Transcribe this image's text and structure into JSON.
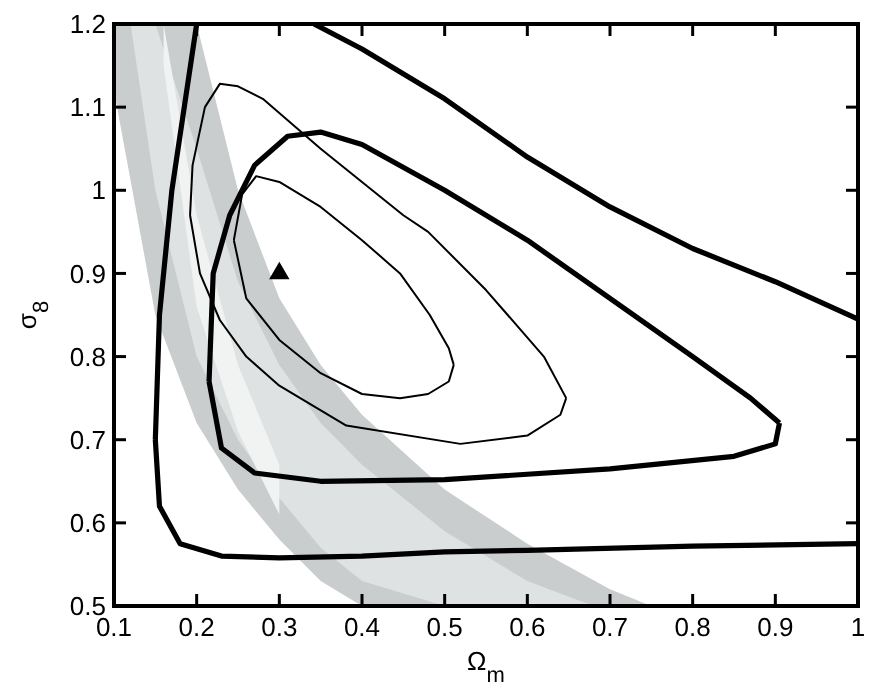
{
  "chart_data": {
    "type": "line",
    "xlabel": "Ω$_{m}$",
    "ylabel": "σ$_{8}$",
    "xlim": [
      0.1,
      1
    ],
    "ylim": [
      0.5,
      1.2
    ],
    "xticks": [
      0.1,
      0.2,
      0.3,
      0.4,
      0.5,
      0.6,
      0.7,
      0.8,
      0.9,
      1
    ],
    "yticks": [
      0.5,
      0.6,
      0.7,
      0.8,
      0.9,
      1,
      1.1,
      1.2
    ],
    "grid": false,
    "series": [
      {
        "type": "area",
        "color": "#c9cdcd",
        "x": [
          0.1,
          0.15,
          0.2,
          0.25,
          0.3,
          0.35,
          0.4,
          0.5,
          0.6,
          0.7,
          0.75
        ],
        "values": [
          null,
          null,
          null,
          null,
          null,
          null,
          null,
          null,
          null,
          null,
          null
        ],
        "upper": [
          1.2,
          1.2,
          1.2,
          1.0,
          0.87,
          0.79,
          0.73,
          0.64,
          0.575,
          0.52,
          0.5
        ],
        "lower": [
          1.12,
          0.85,
          0.72,
          0.64,
          0.58,
          0.53,
          0.5,
          0.5,
          0.5,
          0.5,
          0.5
        ]
      },
      {
        "type": "area",
        "color": "#dfe2e2",
        "x": [
          0.12,
          0.15,
          0.2,
          0.25,
          0.3,
          0.35,
          0.4,
          0.5,
          0.6,
          0.68
        ],
        "values": [
          null,
          null,
          null,
          null,
          null,
          null,
          null,
          null,
          null,
          null
        ],
        "upper": [
          1.2,
          1.2,
          1.05,
          0.89,
          0.79,
          0.72,
          0.67,
          0.59,
          0.53,
          0.5
        ],
        "lower": [
          1.2,
          1.0,
          0.8,
          0.7,
          0.63,
          0.57,
          0.53,
          0.5,
          0.5,
          0.5
        ]
      },
      {
        "type": "area",
        "color": "#f1f2f2",
        "x": [
          0.16,
          0.2,
          0.25,
          0.3
        ],
        "values": [
          null,
          null,
          null,
          null
        ],
        "upper": [
          1.2,
          0.97,
          0.79,
          0.67
        ],
        "lower": [
          1.15,
          0.86,
          0.71,
          0.61
        ]
      },
      {
        "color": "#000000",
        "x": [
          0.342,
          0.4,
          0.5,
          0.6,
          0.7,
          0.8,
          0.9,
          1.0
        ],
        "values": [
          1.2,
          1.17,
          1.11,
          1.04,
          0.98,
          0.93,
          0.89,
          0.845
        ]
      },
      {
        "color": "#000000",
        "x": [
          0.15,
          0.155,
          0.17,
          0.185,
          0.2,
          null,
          0.15,
          0.155,
          0.18,
          0.23,
          0.3,
          0.4,
          0.5,
          0.6,
          0.8,
          1.0
        ],
        "values": [
          0.7,
          0.85,
          1.0,
          1.1,
          1.2,
          null,
          0.7,
          0.62,
          0.575,
          0.56,
          0.558,
          0.56,
          0.565,
          0.567,
          0.572,
          0.575
        ]
      },
      {
        "color": "#000000",
        "x": [
          0.215,
          0.22,
          0.24,
          0.27,
          0.31,
          0.35,
          0.4,
          0.5,
          0.6,
          0.7,
          0.8,
          0.87,
          0.905,
          null,
          0.215,
          0.23,
          0.27,
          0.35,
          0.5,
          0.7,
          0.85,
          0.9,
          0.905
        ],
        "values": [
          0.77,
          0.9,
          0.97,
          1.03,
          1.065,
          1.07,
          1.055,
          1.0,
          0.94,
          0.87,
          0.8,
          0.75,
          0.72,
          null,
          0.77,
          0.69,
          0.66,
          0.65,
          0.652,
          0.665,
          0.68,
          0.695,
          0.72
        ]
      },
      {
        "color": "#000000",
        "x": [
          0.192,
          0.195,
          0.21,
          0.228,
          0.25,
          0.28,
          0.35,
          0.45,
          0.48,
          0.55,
          0.62,
          0.647,
          null,
          0.192,
          0.204,
          0.228,
          0.26,
          0.3,
          0.381,
          0.519,
          0.6,
          0.64,
          0.647
        ],
        "values": [
          0.97,
          1.03,
          1.1,
          1.128,
          1.125,
          1.11,
          1.05,
          0.97,
          0.95,
          0.88,
          0.8,
          0.75,
          null,
          0.97,
          0.9,
          0.844,
          0.8,
          0.765,
          0.717,
          0.695,
          0.705,
          0.73,
          0.75
        ]
      },
      {
        "color": "#000000",
        "x": [
          0.245,
          0.255,
          0.272,
          0.3,
          0.35,
          0.4,
          0.446,
          0.482,
          0.505,
          0.511,
          null,
          0.245,
          0.26,
          0.3,
          0.35,
          0.4,
          0.446,
          0.48,
          0.505,
          0.511
        ],
        "values": [
          0.94,
          0.995,
          1.017,
          1.01,
          0.98,
          0.94,
          0.9,
          0.85,
          0.81,
          0.79,
          null,
          0.94,
          0.87,
          0.82,
          0.78,
          0.755,
          0.75,
          0.755,
          0.77,
          0.79
        ]
      },
      {
        "type": "scatter",
        "color": "#000000",
        "marker": "triangle",
        "x": [
          0.3
        ],
        "values": [
          0.9
        ]
      }
    ]
  }
}
